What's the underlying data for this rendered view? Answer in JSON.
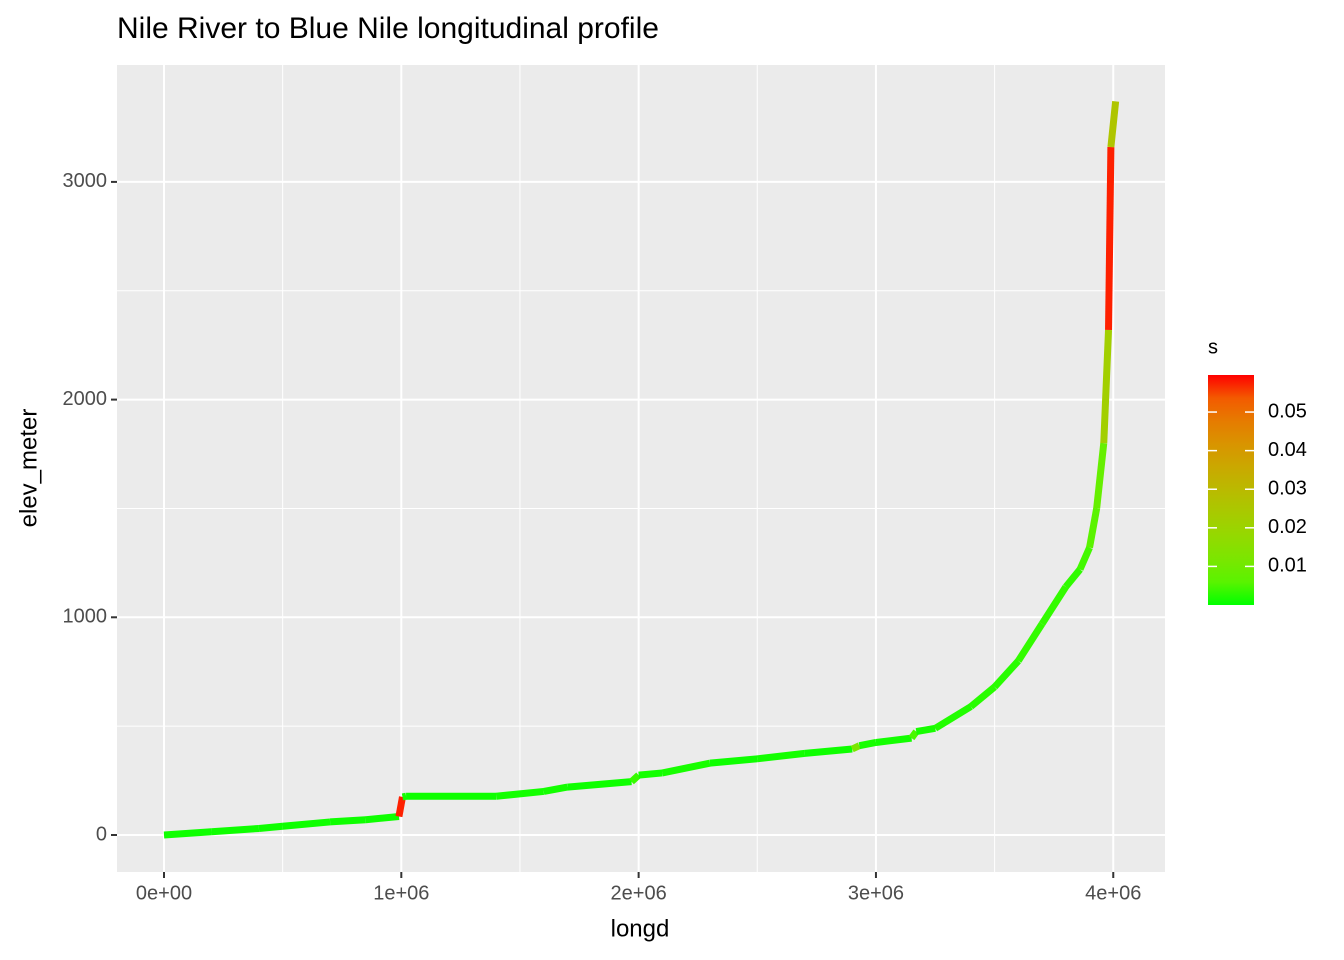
{
  "chart_data": {
    "type": "line",
    "title": "Nile River to Blue Nile longitudinal profile",
    "x_label": "longd",
    "y_label": "elev_meter",
    "color_label": "s",
    "x": [
      0,
      200000,
      400000,
      500000,
      700000,
      850000,
      990000,
      1005000,
      1020000,
      1400000,
      1600000,
      1700000,
      1970000,
      2000000,
      2100000,
      2300000,
      2500000,
      2700000,
      2900000,
      2930000,
      3000000,
      3150000,
      3170000,
      3250000,
      3400000,
      3500000,
      3600000,
      3700000,
      3800000,
      3860000,
      3900000,
      3930000,
      3960000,
      3980000,
      3990000,
      4010000
    ],
    "values": [
      0,
      15,
      30,
      40,
      60,
      70,
      85,
      175,
      178,
      178,
      200,
      220,
      245,
      275,
      285,
      330,
      350,
      375,
      395,
      410,
      425,
      445,
      475,
      490,
      590,
      680,
      800,
      970,
      1140,
      1220,
      1320,
      1500,
      1800,
      2320,
      3160,
      3370
    ],
    "s": [
      0.0002,
      0.0001,
      0.0001,
      0.0001,
      0.0001,
      0.0001,
      0.0001,
      0.059,
      0.0002,
      0.0001,
      0.0002,
      0.0002,
      0.0001,
      0.002,
      0.0002,
      0.0003,
      0.0001,
      0.0002,
      0.0001,
      0.012,
      0.0003,
      0.0002,
      0.004,
      0.0003,
      0.0007,
      0.001,
      0.001,
      0.0017,
      0.0017,
      0.0015,
      0.003,
      0.006,
      0.008,
      0.022,
      0.059,
      0.026
    ],
    "color_low": "#00FF00",
    "color_high": "#FF0000",
    "clim": [
      0,
      0.0596
    ],
    "cticks": [
      0.01,
      0.02,
      0.03,
      0.04,
      0.05
    ],
    "xlim": [
      -198000,
      4218000
    ],
    "xticks": [
      {
        "value": 0,
        "label": "0e+00"
      },
      {
        "value": 1000000,
        "label": "1e+06"
      },
      {
        "value": 2000000,
        "label": "2e+06"
      },
      {
        "value": 3000000,
        "label": "3e+06"
      },
      {
        "value": 4000000,
        "label": "4e+06"
      }
    ],
    "ylim": [
      -170,
      3537
    ],
    "yticks": [
      0,
      1000,
      2000,
      3000
    ],
    "grid": true
  }
}
